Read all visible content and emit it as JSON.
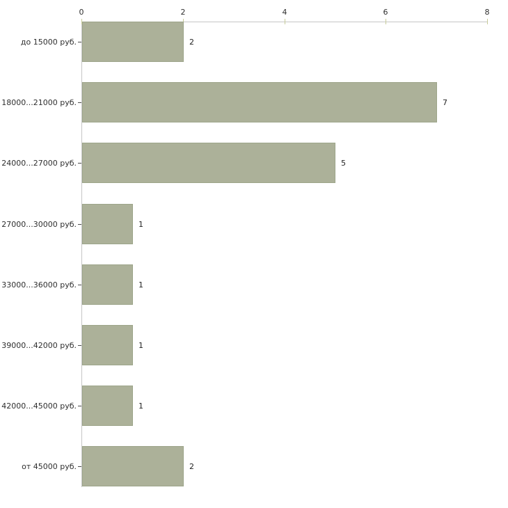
{
  "chart_data": {
    "type": "bar",
    "orientation": "horizontal",
    "title": "",
    "xlabel": "",
    "ylabel": "",
    "categories": [
      "до 15000 руб.",
      "18000...21000 руб.",
      "24000...27000 руб.",
      "27000...30000 руб.",
      "33000...36000 руб.",
      "39000...42000 руб.",
      "42000...45000 руб.",
      "от 45000 руб."
    ],
    "values": [
      2,
      7,
      5,
      1,
      1,
      1,
      1,
      2
    ],
    "x_axis": {
      "position": "top",
      "ticks": [
        0,
        2,
        4,
        6,
        8
      ],
      "range": [
        0,
        8
      ],
      "grid": false
    },
    "legend": null,
    "colors": {
      "bar_fill": "#acb199",
      "bar_border": "#9da58a",
      "axis_line": "#c6c6c6",
      "tick_mark": "#c8cc99",
      "text": "#2e2e2e",
      "background": "#ffffff"
    }
  }
}
